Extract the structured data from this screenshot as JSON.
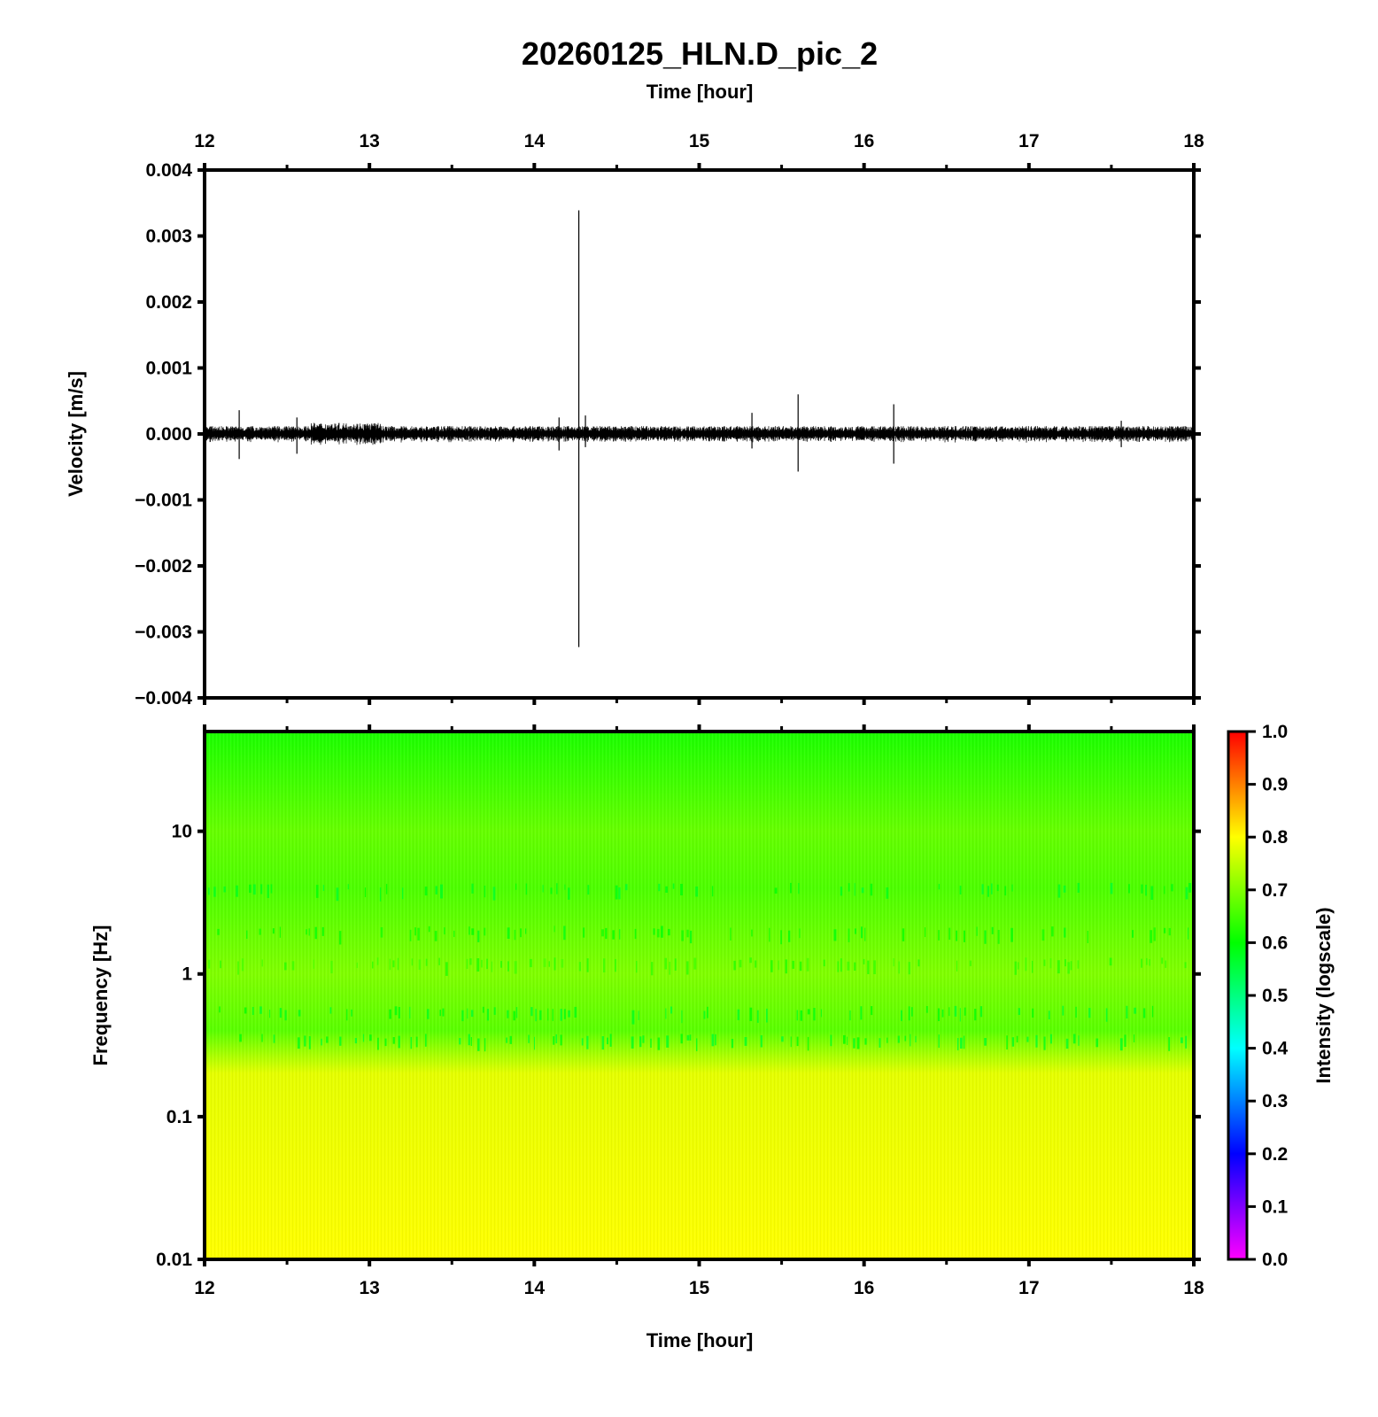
{
  "chart_data": [
    {
      "type": "line",
      "title": "20260125_HLN.D_pic_2",
      "xlabel": "Time [hour]",
      "ylabel": "Velocity [m/s]",
      "xlim": [
        12,
        18
      ],
      "ylim": [
        -0.004,
        0.004
      ],
      "x_ticks": [
        "12",
        "13",
        "14",
        "15",
        "16",
        "17",
        "18"
      ],
      "y_ticks": [
        "0.004",
        "0.003",
        "0.002",
        "0.001",
        "0.000",
        "−0.001",
        "−0.002",
        "−0.003",
        "−0.004"
      ],
      "noise_amplitude": 8e-05,
      "series": [
        {
          "values": "seismic velocity trace",
          "spikes": [
            {
              "x": 12.21,
              "max": 0.00036,
              "min": -0.00038
            },
            {
              "x": 12.56,
              "max": 0.00025,
              "min": -0.0003
            },
            {
              "x": 14.15,
              "max": 0.00025,
              "min": -0.00025
            },
            {
              "x": 14.27,
              "max": 0.00339,
              "min": -0.00323
            },
            {
              "x": 14.31,
              "max": 0.00028,
              "min": -0.0002
            },
            {
              "x": 15.32,
              "max": 0.00032,
              "min": -0.00022
            },
            {
              "x": 15.6,
              "max": 0.0006,
              "min": -0.00057
            },
            {
              "x": 16.18,
              "max": 0.00045,
              "min": -0.00045
            },
            {
              "x": 17.56,
              "max": 0.0002,
              "min": -0.0002
            }
          ]
        }
      ],
      "grid": false
    },
    {
      "type": "heatmap",
      "xlabel": "Time [hour]",
      "ylabel": "Frequency [Hz]",
      "xlim": [
        12,
        18
      ],
      "ylim": [
        0.01,
        50
      ],
      "yscale": "log",
      "x_ticks": [
        "12",
        "13",
        "14",
        "15",
        "16",
        "17",
        "18"
      ],
      "y_ticks": [
        "10",
        "1",
        "0.1",
        "0.01"
      ],
      "intensity_profile": [
        {
          "freq": 50,
          "intensity": 0.62
        },
        {
          "freq": 10,
          "intensity": 0.68
        },
        {
          "freq": 4,
          "intensity": 0.66
        },
        {
          "freq": 1,
          "intensity": 0.7
        },
        {
          "freq": 0.4,
          "intensity": 0.67
        },
        {
          "freq": 0.2,
          "intensity": 0.78
        },
        {
          "freq": 0.05,
          "intensity": 0.79
        },
        {
          "freq": 0.01,
          "intensity": 0.8
        }
      ],
      "colorbar": {
        "label": "Intensity (logscale)",
        "range": [
          0,
          1
        ],
        "ticks": [
          "1.0",
          "0.9",
          "0.8",
          "0.7",
          "0.6",
          "0.5",
          "0.4",
          "0.3",
          "0.2",
          "0.1",
          "0.0"
        ],
        "colormap": [
          "#ff00ff",
          "#8000ff",
          "#0000ff",
          "#0080ff",
          "#00ffff",
          "#00ff80",
          "#00ff00",
          "#80ff00",
          "#ffff00",
          "#ff8000",
          "#ff0000"
        ]
      }
    }
  ]
}
